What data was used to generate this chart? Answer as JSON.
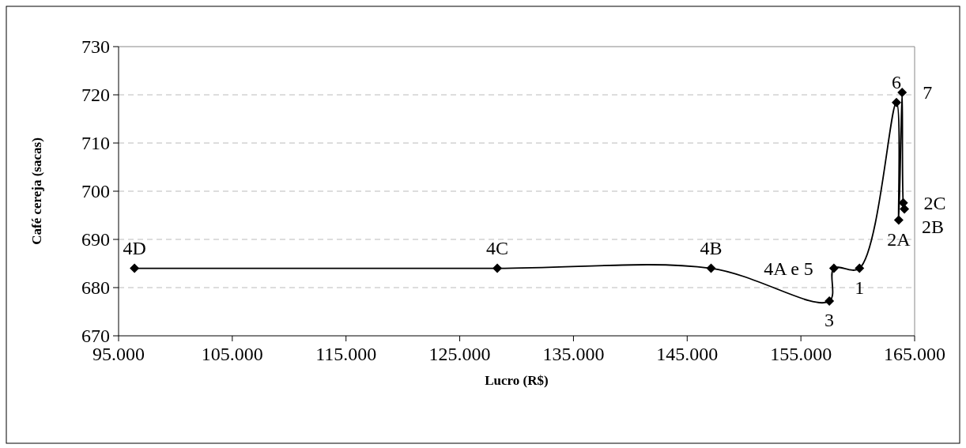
{
  "chart_data": {
    "type": "line",
    "xlabel": "Lucro (R$)",
    "ylabel": "Café cereja (sacas)",
    "x": [
      96400,
      128300,
      147100,
      157500,
      157900,
      160150,
      163400,
      163600,
      163900,
      164000,
      164100
    ],
    "series": [
      {
        "color": "#000000",
        "values": [
          684,
          684,
          684,
          677.2,
          684,
          684,
          718.4,
          694,
          720.5,
          697.6,
          696.3
        ]
      }
    ],
    "xlim": [
      95000,
      165000
    ],
    "xticks": [
      {
        "value": 95000,
        "label": "95.000"
      },
      {
        "value": 105000,
        "label": "105.000"
      },
      {
        "value": 115000,
        "label": "115.000"
      },
      {
        "value": 125000,
        "label": "125.000"
      },
      {
        "value": 135000,
        "label": "135.000"
      },
      {
        "value": 145000,
        "label": "145.000"
      },
      {
        "value": 155000,
        "label": "155.000"
      },
      {
        "value": 165000,
        "label": "165.000"
      }
    ],
    "ylim": [
      670,
      730
    ],
    "yticks": [
      670,
      680,
      690,
      700,
      710,
      720,
      730
    ],
    "grid": "y",
    "marker": "diamond",
    "line_style": "solid",
    "annotations": [
      {
        "text": "4D",
        "x": 96400,
        "y": 684
      },
      {
        "text": "4C",
        "x": 128300,
        "y": 684
      },
      {
        "text": "4B",
        "x": 147100,
        "y": 684
      },
      {
        "text": "3",
        "x": 157500,
        "y": 677.2
      },
      {
        "text": "4A e 5",
        "x": 157900,
        "y": 684
      },
      {
        "text": "1",
        "x": 160150,
        "y": 684
      },
      {
        "text": "6",
        "x": 163400,
        "y": 718.4
      },
      {
        "text": "2A",
        "x": 163600,
        "y": 694
      },
      {
        "text": "7",
        "x": 163900,
        "y": 720.5
      },
      {
        "text": "2C",
        "x": 164000,
        "y": 697.6
      },
      {
        "text": "2B",
        "x": 164100,
        "y": 696.3
      }
    ]
  }
}
